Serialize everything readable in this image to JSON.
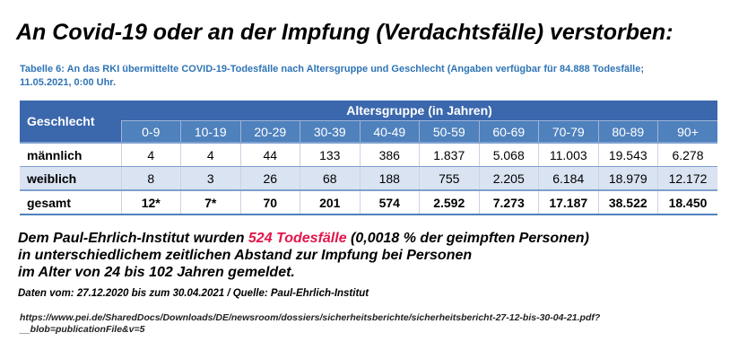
{
  "headline": "An Covid-19 oder an der Impfung (Verdachtsfälle) verstorben:",
  "caption": {
    "line1": "Tabelle 6: An das RKI übermittelte COVID-19-Todesfälle nach Altersgruppe und Geschlecht (Angaben verfügbar für 84.888 Todesfälle;",
    "line2": "11.05.2021, 0:00 Uhr."
  },
  "table": {
    "sex_header": "Geschlecht",
    "age_group_header": "Altersgruppe (in Jahren)",
    "age_groups": [
      "0-9",
      "10-19",
      "20-29",
      "30-39",
      "40-49",
      "50-59",
      "60-69",
      "70-79",
      "80-89",
      "90+"
    ],
    "rows": [
      {
        "label": "männlich",
        "values": [
          "4",
          "4",
          "44",
          "133",
          "386",
          "1.837",
          "5.068",
          "11.003",
          "19.543",
          "6.278"
        ]
      },
      {
        "label": "weiblich",
        "values": [
          "8",
          "3",
          "26",
          "68",
          "188",
          "755",
          "2.205",
          "6.184",
          "18.979",
          "12.172"
        ]
      },
      {
        "label": "gesamt",
        "values": [
          "12*",
          "7*",
          "70",
          "201",
          "574",
          "2.592",
          "7.273",
          "17.187",
          "38.522",
          "18.450"
        ]
      }
    ]
  },
  "info": {
    "line1_pre": "Dem Paul-Ehrlich-Institut wurden ",
    "line1_highlight": "524 Todesfälle",
    "line1_post": " (0,0018 % der geimpften Personen)",
    "line2": "in unterschiedlichem  zeitlichen Abstand zur Impfung bei Personen",
    "line3": "im Alter von 24 bis 102 Jahren gemeldet."
  },
  "source": "Daten vom: 27.12.2020 bis zum 30.04.2021 / Quelle: Paul-Ehrlich-Institut",
  "url": {
    "line1": "https://www.pei.de/SharedDocs/Downloads/DE/newsroom/dossiers/sicherheitsberichte/sicherheitsbericht-27-12-bis-30-04-21.pdf?",
    "line2": "__blob=publicationFile&v=5"
  },
  "colors": {
    "header_blue": "#3b67ad",
    "age_row_blue": "#4f81bd",
    "stripe_row": "#d9e3f1",
    "caption_blue": "#2e74b5",
    "highlight_red": "#e2164a"
  }
}
